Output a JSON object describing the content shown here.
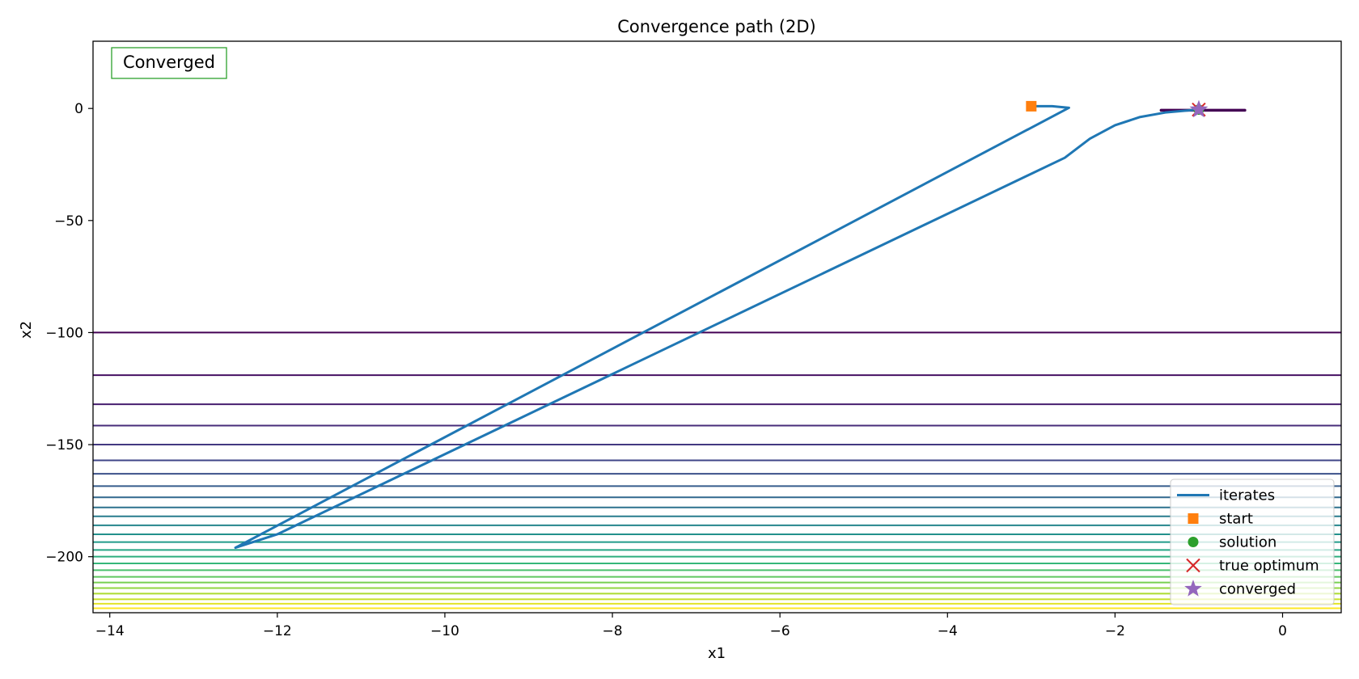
{
  "chart_data": {
    "type": "line",
    "title": "Convergence path (2D)",
    "xlabel": "x1",
    "ylabel": "x2",
    "xlim": [
      -14.2,
      0.7
    ],
    "ylim": [
      -225,
      30
    ],
    "xticks": [
      -14,
      -12,
      -10,
      -8,
      -6,
      -4,
      -2,
      0
    ],
    "yticks": [
      0,
      -50,
      -100,
      -150,
      -200
    ],
    "grid": false,
    "status_box": {
      "text": "Converged",
      "color": "#2ca02c",
      "position": "top-left"
    },
    "legend": {
      "position": "lower-right",
      "entries": [
        {
          "label": "iterates",
          "marker": "line",
          "color": "#1f77b4"
        },
        {
          "label": "start",
          "marker": "square",
          "color": "#ff7f0e"
        },
        {
          "label": "solution",
          "marker": "circle",
          "color": "#2ca02c"
        },
        {
          "label": "true optimum",
          "marker": "x",
          "color": "#d62728"
        },
        {
          "label": "converged",
          "marker": "star",
          "color": "#9467bd"
        }
      ]
    },
    "contours": {
      "colormap": "viridis",
      "levels_x2": [
        -100,
        -119,
        -132,
        -141.5,
        -150,
        -157,
        -163,
        -168.5,
        -173.5,
        -178,
        -182,
        -186,
        -190,
        -193.5,
        -197,
        -200,
        -203,
        -206,
        -209,
        -211.5,
        -214,
        -216.5,
        -219,
        -221,
        -223
      ],
      "center_contour": {
        "x": [
          -1.45,
          -0.45
        ],
        "x2": -0.8,
        "color": "#440154"
      }
    },
    "series": [
      {
        "name": "iterates",
        "color": "#1f77b4",
        "points": [
          [
            -3.0,
            1.0
          ],
          [
            -2.75,
            1.0
          ],
          [
            -2.55,
            0.3
          ],
          [
            -12.5,
            -196.0
          ],
          [
            -12.0,
            -190.0
          ],
          [
            -2.6,
            -22.0
          ],
          [
            -2.3,
            -13.5
          ],
          [
            -2.0,
            -7.5
          ],
          [
            -1.7,
            -3.8
          ],
          [
            -1.4,
            -1.8
          ],
          [
            -1.1,
            -0.8
          ],
          [
            -1.0,
            -0.5
          ]
        ]
      }
    ],
    "markers": {
      "start": {
        "x": -3.0,
        "y": 1.0,
        "color": "#ff7f0e"
      },
      "solution": {
        "x": -1.0,
        "y": -0.5,
        "color": "#2ca02c"
      },
      "true_optimum": {
        "x": -1.0,
        "y": -0.5,
        "color": "#d62728"
      },
      "converged": {
        "x": -1.0,
        "y": -0.5,
        "color": "#9467bd"
      }
    }
  }
}
